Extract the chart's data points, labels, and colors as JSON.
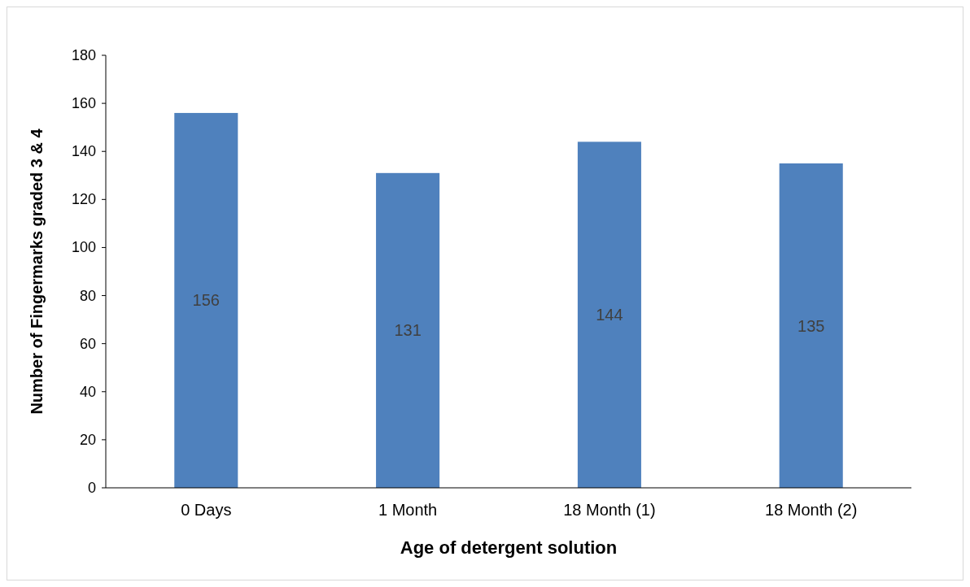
{
  "chart_data": {
    "type": "bar",
    "xlabel": "Age of detergent solution",
    "ylabel": "Number of Fingermarks graded 3 & 4",
    "categories": [
      "0 Days",
      "1 Month",
      "18 Month (1)",
      "18 Month (2)"
    ],
    "values": [
      156,
      131,
      144,
      135
    ],
    "color": "#4f81bd",
    "ylim": [
      0,
      180
    ],
    "yticks": [
      0,
      20,
      40,
      60,
      80,
      100,
      120,
      140,
      160,
      180
    ],
    "grid": false,
    "data_labels": true
  }
}
